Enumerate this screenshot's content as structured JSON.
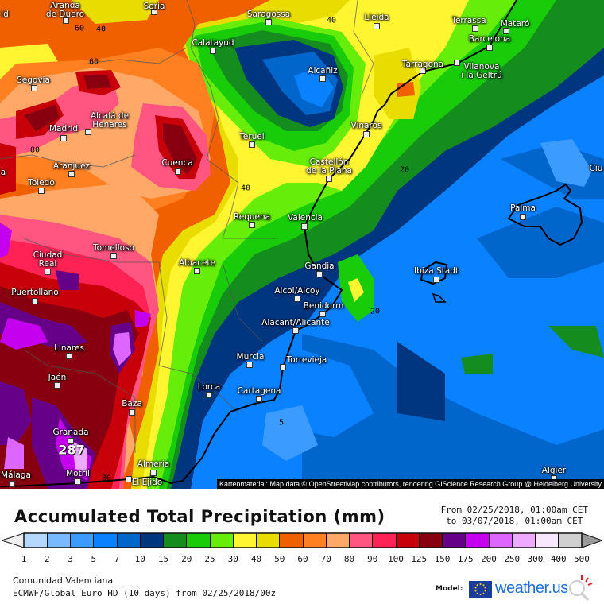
{
  "map": {
    "cities": [
      "Aranda\nde Duero",
      "Soria",
      "Saragossa",
      "Lleida",
      "Terrassa",
      "Mataró",
      "Barcelona",
      "Calatayud",
      "Tarragona",
      "Vilanova\ni la Geltrú",
      "Alcañiz",
      "Segovia",
      "Alcalá de\nHenares",
      "Madrid",
      "Vinaròs",
      "Teruel",
      "Aranjuez",
      "Cuenca",
      "Castellón\nde la Plana",
      "Toledo",
      "Palma",
      "Ciu",
      "Requena",
      "Valencia",
      "Tomelloso",
      "Ciudad\nReal",
      "Albacete",
      "Ibiza Stadt",
      "Gandia",
      "Puertollano",
      "Alcoi/Alcoy",
      "Benidorm",
      "Alacant/Alicante",
      "Linares",
      "Murcia",
      "Torrevieja",
      "Jaén",
      "Lorca",
      "Cartagena",
      "Baza",
      "Granada",
      "Almeria",
      "Málaga",
      "Motril",
      "El Ejido",
      "Algier",
      "id",
      "a"
    ],
    "contour_labels": [
      "40",
      "60",
      "60",
      "80",
      "40",
      "40",
      "20",
      "20",
      "5",
      "80"
    ],
    "peak_value": "287",
    "attribution": "Kartenmaterial: Map data © OpenStreetMap contributors, rendering GIScience Research Group @ Heidelberg University"
  },
  "legend": {
    "title": "Accumulated Total Precipitation (mm)",
    "from": "From 02/25/2018, 01:00am CET",
    "to": "to 03/07/2018, 01:00am CET",
    "ticks": [
      "1",
      "2",
      "3",
      "5",
      "7",
      "10",
      "15",
      "20",
      "25",
      "30",
      "40",
      "50",
      "60",
      "70",
      "80",
      "90",
      "100",
      "125",
      "150",
      "175",
      "200",
      "250",
      "300",
      "400",
      "500"
    ],
    "colors": [
      "#b4d8ff",
      "#78b9ff",
      "#3c9bff",
      "#0a82ff",
      "#0066cc",
      "#003580",
      "#158c1e",
      "#18cc0a",
      "#66ee0a",
      "#fff530",
      "#e8dc00",
      "#f06000",
      "#ff8020",
      "#ffa868",
      "#ff5580",
      "#ff2255",
      "#c8000a",
      "#880010",
      "#660088",
      "#c400ee",
      "#dd66ff",
      "#eeaaff",
      "#f8e8ff",
      "#d0d0d0"
    ],
    "under_color": "#eeeeee",
    "over_color": "#999999"
  },
  "footer": {
    "region": "Comunidad Valenciana",
    "model": "ECMWF/Global Euro HD (10 days) from 02/25/2018/00z",
    "model_label": "Model:",
    "brand": "weather.us"
  }
}
